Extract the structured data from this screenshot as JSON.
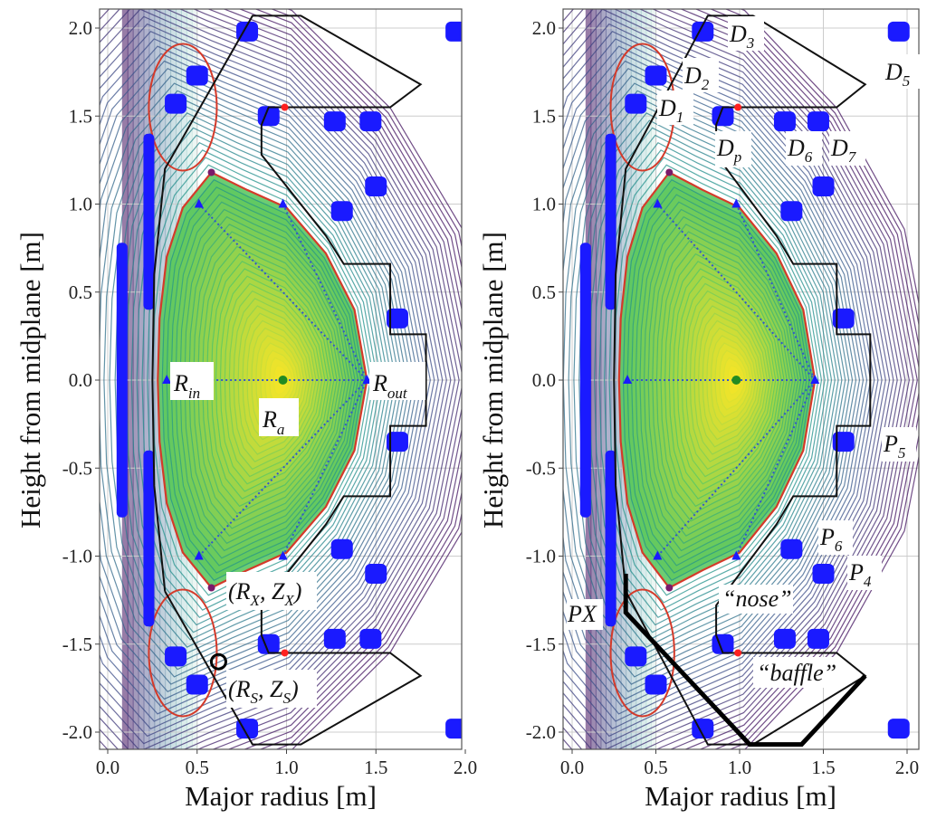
{
  "chart_data": [
    {
      "type": "contour",
      "panel": "left",
      "xlabel": "Major radius [m]",
      "ylabel": "Height from midplane [m]",
      "xlim": [
        -0.05,
        2.05
      ],
      "ylim": [
        -2.1,
        2.1
      ],
      "xticks": [
        "0.0",
        "0.5",
        "1.0",
        "1.5",
        "2.0"
      ],
      "yticks": [
        "2.0",
        "1.5",
        "1.0",
        "0.5",
        "0.0",
        "-0.5",
        "-1.0",
        "-1.5",
        "-2.0"
      ],
      "grid": true,
      "annotations": {
        "r_in": {
          "main": "R",
          "sub": "in"
        },
        "r_out": {
          "main": "R",
          "sub": "out"
        },
        "r_a": {
          "main": "R",
          "sub": "a"
        },
        "x_point": {
          "open": "(R",
          "sub1": "X",
          "mid": ", Z",
          "sub2": "X",
          "close": ")"
        },
        "strike": {
          "open": "(R",
          "sub1": "S",
          "mid": ", Z",
          "sub2": "S",
          "close": ")"
        }
      }
    },
    {
      "type": "contour",
      "panel": "right",
      "xlabel": "Major radius [m]",
      "ylabel": "Height from midplane [m]",
      "xlim": [
        -0.05,
        2.05
      ],
      "ylim": [
        -2.1,
        2.1
      ],
      "xticks": [
        "0.0",
        "0.5",
        "1.0",
        "1.5",
        "2.0"
      ],
      "yticks": [
        "2.0",
        "1.5",
        "1.0",
        "0.5",
        "0.0",
        "-0.5",
        "-1.0",
        "-1.5",
        "-2.0"
      ],
      "grid": true,
      "annotations": {
        "d1": {
          "main": "D",
          "sub": "1"
        },
        "d2": {
          "main": "D",
          "sub": "2"
        },
        "d3": {
          "main": "D",
          "sub": "3"
        },
        "d5": {
          "main": "D",
          "sub": "5"
        },
        "dp": {
          "main": "D",
          "sub": "p"
        },
        "d6": {
          "main": "D",
          "sub": "6"
        },
        "d7": {
          "main": "D",
          "sub": "7"
        },
        "p5": {
          "main": "P",
          "sub": "5"
        },
        "p6": {
          "main": "P",
          "sub": "6"
        },
        "p4": {
          "main": "P",
          "sub": "4"
        },
        "px": "PX",
        "nose": "“nose”",
        "baffle": "“baffle”"
      }
    }
  ],
  "geometry": {
    "magnetic_axis": [
      0.98,
      0.0
    ],
    "x_point": [
      0.58,
      1.18
    ],
    "separatrix": [
      [
        0.58,
        1.18
      ],
      [
        0.42,
        0.98
      ],
      [
        0.33,
        0.7
      ],
      [
        0.29,
        0.35
      ],
      [
        0.28,
        0
      ],
      [
        0.29,
        -0.35
      ],
      [
        0.33,
        -0.7
      ],
      [
        0.42,
        -0.98
      ],
      [
        0.58,
        -1.18
      ],
      [
        0.78,
        -1.08
      ],
      [
        1.0,
        -0.98
      ],
      [
        1.22,
        -0.72
      ],
      [
        1.38,
        -0.4
      ],
      [
        1.45,
        0
      ],
      [
        1.38,
        0.4
      ],
      [
        1.22,
        0.72
      ],
      [
        1.0,
        0.98
      ],
      [
        0.78,
        1.08
      ]
    ],
    "wall": [
      [
        0.32,
        -1.2
      ],
      [
        0.26,
        -0.6
      ],
      [
        0.25,
        0
      ],
      [
        0.26,
        0.6
      ],
      [
        0.32,
        1.2
      ],
      [
        0.81,
        2.07
      ],
      [
        1.08,
        2.07
      ],
      [
        1.75,
        1.68
      ],
      [
        1.58,
        1.55
      ],
      [
        0.9,
        1.55
      ],
      [
        0.86,
        1.45
      ],
      [
        0.86,
        1.28
      ],
      [
        1.22,
        0.82
      ],
      [
        1.32,
        0.66
      ],
      [
        1.58,
        0.66
      ],
      [
        1.58,
        0.26
      ],
      [
        1.78,
        0.26
      ],
      [
        1.78,
        -0.26
      ],
      [
        1.58,
        -0.26
      ],
      [
        1.58,
        -0.66
      ],
      [
        1.32,
        -0.66
      ],
      [
        1.22,
        -0.82
      ],
      [
        0.86,
        -1.28
      ],
      [
        0.86,
        -1.45
      ],
      [
        0.9,
        -1.55
      ],
      [
        1.58,
        -1.55
      ],
      [
        1.75,
        -1.68
      ],
      [
        1.08,
        -2.07
      ],
      [
        0.81,
        -2.07
      ],
      [
        0.32,
        -1.2
      ]
    ],
    "baffle_wall": [
      [
        0.32,
        -1.1
      ],
      [
        0.32,
        -1.32
      ],
      [
        1.06,
        -2.07
      ],
      [
        1.37,
        -2.07
      ],
      [
        1.75,
        -1.68
      ]
    ],
    "coils_bars": [
      [
        0.08,
        -0.78,
        0.78
      ],
      [
        0.23,
        0.4,
        1.4
      ],
      [
        0.23,
        -1.4,
        -0.4
      ]
    ],
    "coils": [
      [
        0.38,
        1.57
      ],
      [
        0.5,
        1.73
      ],
      [
        0.78,
        1.98
      ],
      [
        0.9,
        1.5
      ],
      [
        1.27,
        1.47
      ],
      [
        1.47,
        1.47
      ],
      [
        1.5,
        1.1
      ],
      [
        1.31,
        0.96
      ],
      [
        1.62,
        0.35
      ],
      [
        1.95,
        1.98
      ],
      [
        0.38,
        -1.57
      ],
      [
        0.5,
        -1.73
      ],
      [
        0.78,
        -1.98
      ],
      [
        0.9,
        -1.5
      ],
      [
        1.27,
        -1.47
      ],
      [
        1.47,
        -1.47
      ],
      [
        1.5,
        -1.1
      ],
      [
        1.31,
        -0.96
      ],
      [
        1.62,
        -0.35
      ],
      [
        1.95,
        -1.98
      ]
    ],
    "probes": [
      [
        0.51,
        1.0
      ],
      [
        0.98,
        1.0
      ],
      [
        0.51,
        -1.0
      ],
      [
        0.98,
        -1.0
      ],
      [
        1.45,
        0
      ],
      [
        0.33,
        0
      ]
    ],
    "colors": {
      "coil": "#1a1aff",
      "separatrix": "#d43a2a",
      "wall": "#111111",
      "axis": "#228b22",
      "probe_line": "#3355cc",
      "marker": "#ff2020"
    }
  }
}
